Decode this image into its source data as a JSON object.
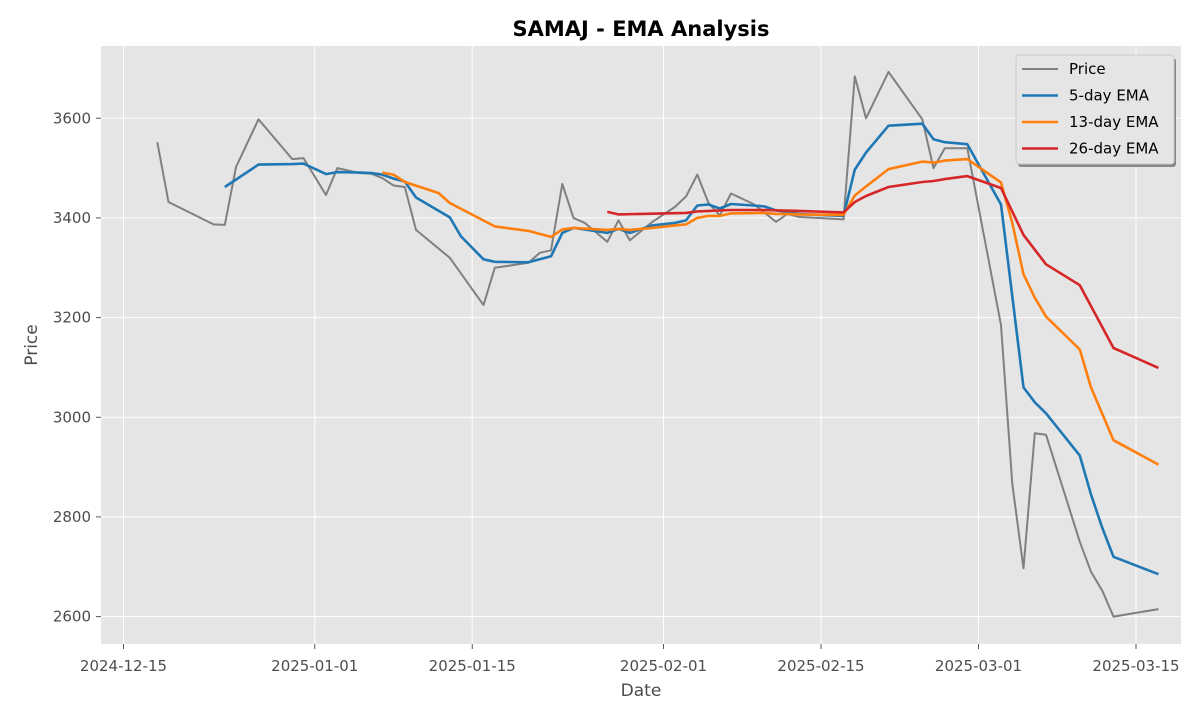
{
  "chart_data": {
    "type": "line",
    "title": "SAMAJ - EMA Analysis",
    "xlabel": "Date",
    "ylabel": "Price",
    "xlim": [
      "2024-12-13",
      "2025-03-19"
    ],
    "ylim": [
      2545,
      3745
    ],
    "x_ticks": [
      "2024-12-15",
      "2025-01-01",
      "2025-01-15",
      "2025-02-01",
      "2025-02-15",
      "2025-03-01",
      "2025-03-15"
    ],
    "y_ticks": [
      2600,
      2800,
      3000,
      3200,
      3400,
      3600
    ],
    "grid": true,
    "legend_position": "top-right",
    "series": [
      {
        "name": "Price",
        "color": "#808080",
        "points": [
          [
            "2024-12-18",
            3552
          ],
          [
            "2024-12-19",
            3432
          ],
          [
            "2024-12-23",
            3387
          ],
          [
            "2024-12-24",
            3386
          ],
          [
            "2024-12-25",
            3502
          ],
          [
            "2024-12-27",
            3598
          ],
          [
            "2024-12-30",
            3518
          ],
          [
            "2024-12-31",
            3520
          ],
          [
            "2025-01-02",
            3446
          ],
          [
            "2025-01-03",
            3500
          ],
          [
            "2025-01-05",
            3490
          ],
          [
            "2025-01-06",
            3489
          ],
          [
            "2025-01-07",
            3480
          ],
          [
            "2025-01-08",
            3465
          ],
          [
            "2025-01-09",
            3462
          ],
          [
            "2025-01-10",
            3376
          ],
          [
            "2025-01-13",
            3320
          ],
          [
            "2025-01-16",
            3225
          ],
          [
            "2025-01-17",
            3300
          ],
          [
            "2025-01-20",
            3310
          ],
          [
            "2025-01-21",
            3330
          ],
          [
            "2025-01-22",
            3335
          ],
          [
            "2025-01-23",
            3468
          ],
          [
            "2025-01-24",
            3400
          ],
          [
            "2025-01-25",
            3390
          ],
          [
            "2025-01-27",
            3352
          ],
          [
            "2025-01-28",
            3395
          ],
          [
            "2025-01-29",
            3355
          ],
          [
            "2025-01-31",
            3392
          ],
          [
            "2025-02-02",
            3422
          ],
          [
            "2025-02-03",
            3443
          ],
          [
            "2025-02-04",
            3487
          ],
          [
            "2025-02-05",
            3430
          ],
          [
            "2025-02-06",
            3405
          ],
          [
            "2025-02-07",
            3449
          ],
          [
            "2025-02-09",
            3428
          ],
          [
            "2025-02-10",
            3410
          ],
          [
            "2025-02-11",
            3392
          ],
          [
            "2025-02-12",
            3408
          ],
          [
            "2025-02-13",
            3402
          ],
          [
            "2025-02-17",
            3397
          ],
          [
            "2025-02-18",
            3684
          ],
          [
            "2025-02-19",
            3600
          ],
          [
            "2025-02-21",
            3693
          ],
          [
            "2025-02-24",
            3598
          ],
          [
            "2025-02-25",
            3500
          ],
          [
            "2025-02-26",
            3540
          ],
          [
            "2025-02-28",
            3540
          ],
          [
            "2025-03-03",
            3185
          ],
          [
            "2025-03-04",
            2866
          ],
          [
            "2025-03-05",
            2697
          ],
          [
            "2025-03-06",
            2968
          ],
          [
            "2025-03-07",
            2965
          ],
          [
            "2025-03-10",
            2750
          ],
          [
            "2025-03-11",
            2690
          ],
          [
            "2025-03-12",
            2652
          ],
          [
            "2025-03-13",
            2600
          ],
          [
            "2025-03-17",
            2615
          ]
        ]
      },
      {
        "name": "5-day EMA",
        "color": "#1f77b4",
        "points": [
          [
            "2024-12-24",
            3462
          ],
          [
            "2024-12-27",
            3507
          ],
          [
            "2024-12-30",
            3508
          ],
          [
            "2024-12-31",
            3509
          ],
          [
            "2025-01-02",
            3488
          ],
          [
            "2025-01-03",
            3492
          ],
          [
            "2025-01-05",
            3491
          ],
          [
            "2025-01-06",
            3490
          ],
          [
            "2025-01-07",
            3487
          ],
          [
            "2025-01-08",
            3479
          ],
          [
            "2025-01-09",
            3473
          ],
          [
            "2025-01-10",
            3441
          ],
          [
            "2025-01-13",
            3401
          ],
          [
            "2025-01-14",
            3363
          ],
          [
            "2025-01-16",
            3317
          ],
          [
            "2025-01-17",
            3312
          ],
          [
            "2025-01-20",
            3311
          ],
          [
            "2025-01-22",
            3323
          ],
          [
            "2025-01-23",
            3370
          ],
          [
            "2025-01-24",
            3380
          ],
          [
            "2025-01-27",
            3370
          ],
          [
            "2025-01-28",
            3378
          ],
          [
            "2025-01-29",
            3370
          ],
          [
            "2025-01-31",
            3385
          ],
          [
            "2025-02-02",
            3390
          ],
          [
            "2025-02-03",
            3395
          ],
          [
            "2025-02-04",
            3425
          ],
          [
            "2025-02-05",
            3427
          ],
          [
            "2025-02-06",
            3419
          ],
          [
            "2025-02-07",
            3428
          ],
          [
            "2025-02-09",
            3425
          ],
          [
            "2025-02-10",
            3423
          ],
          [
            "2025-02-11",
            3415
          ],
          [
            "2025-02-12",
            3412
          ],
          [
            "2025-02-13",
            3408
          ],
          [
            "2025-02-17",
            3404
          ],
          [
            "2025-02-18",
            3497
          ],
          [
            "2025-02-19",
            3531
          ],
          [
            "2025-02-21",
            3585
          ],
          [
            "2025-02-24",
            3589
          ],
          [
            "2025-02-25",
            3558
          ],
          [
            "2025-02-26",
            3552
          ],
          [
            "2025-02-28",
            3548
          ],
          [
            "2025-03-03",
            3427
          ],
          [
            "2025-03-05",
            3060
          ],
          [
            "2025-03-06",
            3030
          ],
          [
            "2025-03-07",
            3008
          ],
          [
            "2025-03-10",
            2923
          ],
          [
            "2025-03-11",
            2845
          ],
          [
            "2025-03-12",
            2778
          ],
          [
            "2025-03-13",
            2720
          ],
          [
            "2025-03-17",
            2685
          ]
        ]
      },
      {
        "name": "13-day EMA",
        "color": "#ff7f0e",
        "points": [
          [
            "2025-01-07",
            3491
          ],
          [
            "2025-01-08",
            3487
          ],
          [
            "2025-01-09",
            3472
          ],
          [
            "2025-01-12",
            3450
          ],
          [
            "2025-01-13",
            3430
          ],
          [
            "2025-01-17",
            3383
          ],
          [
            "2025-01-20",
            3374
          ],
          [
            "2025-01-22",
            3362
          ],
          [
            "2025-01-23",
            3377
          ],
          [
            "2025-01-24",
            3380
          ],
          [
            "2025-01-27",
            3376
          ],
          [
            "2025-01-28",
            3378
          ],
          [
            "2025-01-29",
            3376
          ],
          [
            "2025-01-31",
            3380
          ],
          [
            "2025-02-02",
            3385
          ],
          [
            "2025-02-03",
            3387
          ],
          [
            "2025-02-04",
            3400
          ],
          [
            "2025-02-05",
            3404
          ],
          [
            "2025-02-06",
            3404
          ],
          [
            "2025-02-07",
            3409
          ],
          [
            "2025-02-10",
            3410
          ],
          [
            "2025-02-11",
            3408
          ],
          [
            "2025-02-12",
            3408
          ],
          [
            "2025-02-13",
            3407
          ],
          [
            "2025-02-17",
            3406
          ],
          [
            "2025-02-18",
            3445
          ],
          [
            "2025-02-19",
            3463
          ],
          [
            "2025-02-21",
            3498
          ],
          [
            "2025-02-24",
            3513
          ],
          [
            "2025-02-25",
            3511
          ],
          [
            "2025-02-26",
            3515
          ],
          [
            "2025-02-28",
            3518
          ],
          [
            "2025-03-03",
            3471
          ],
          [
            "2025-03-04",
            3390
          ],
          [
            "2025-03-05",
            3287
          ],
          [
            "2025-03-06",
            3240
          ],
          [
            "2025-03-07",
            3202
          ],
          [
            "2025-03-10",
            3136
          ],
          [
            "2025-03-11",
            3060
          ],
          [
            "2025-03-13",
            2954
          ],
          [
            "2025-03-17",
            2905
          ]
        ]
      },
      {
        "name": "26-day EMA",
        "color": "#d62728",
        "points": [
          [
            "2025-01-27",
            3412
          ],
          [
            "2025-01-28",
            3407
          ],
          [
            "2025-02-03",
            3410
          ],
          [
            "2025-02-04",
            3413
          ],
          [
            "2025-02-07",
            3416
          ],
          [
            "2025-02-10",
            3416
          ],
          [
            "2025-02-13",
            3414
          ],
          [
            "2025-02-17",
            3411
          ],
          [
            "2025-02-18",
            3432
          ],
          [
            "2025-02-19",
            3444
          ],
          [
            "2025-02-21",
            3462
          ],
          [
            "2025-02-24",
            3472
          ],
          [
            "2025-02-25",
            3474
          ],
          [
            "2025-02-26",
            3478
          ],
          [
            "2025-02-28",
            3484
          ],
          [
            "2025-03-03",
            3460
          ],
          [
            "2025-03-05",
            3366
          ],
          [
            "2025-03-07",
            3307
          ],
          [
            "2025-03-10",
            3265
          ],
          [
            "2025-03-13",
            3139
          ],
          [
            "2025-03-17",
            3099
          ]
        ]
      }
    ]
  }
}
